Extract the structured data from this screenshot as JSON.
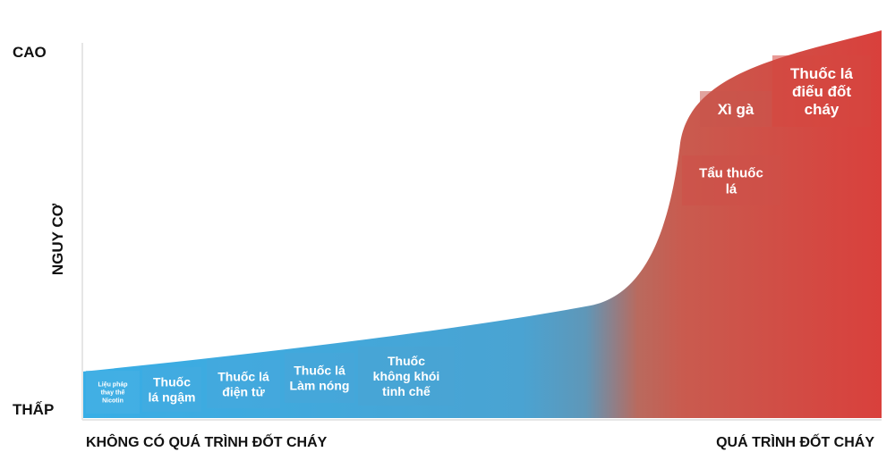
{
  "chart_data": {
    "type": "area",
    "title": "",
    "ylabel": "NGUY CƠ",
    "y_high_label": "CAO",
    "y_low_label": "THẤP",
    "x_left_label": "KHÔNG CÓ QUÁ TRÌNH ĐỐT CHÁY",
    "x_right_label": "QUÁ TRÌNH ĐỐT CHÁY",
    "grid": false,
    "colors": {
      "low_risk": "#3aa8e0",
      "high_risk": "#d9403c",
      "axis": "#e6e6e6"
    },
    "products": [
      {
        "lines": [
          "Liệu pháp",
          "thay thế",
          "Nicotin"
        ]
      },
      {
        "lines": [
          "Thuốc",
          "lá ngậm"
        ]
      },
      {
        "lines": [
          "Thuốc lá",
          "điện tử"
        ]
      },
      {
        "lines": [
          "Thuốc lá",
          "Làm nóng"
        ]
      },
      {
        "lines": [
          "Thuốc",
          "không khói",
          "tinh chế"
        ]
      },
      {
        "lines": [
          "Tẩu thuốc",
          "lá"
        ]
      },
      {
        "lines": [
          "Xì gà"
        ]
      },
      {
        "lines": [
          "Thuốc lá",
          "điếu đốt",
          "cháy"
        ]
      }
    ]
  }
}
